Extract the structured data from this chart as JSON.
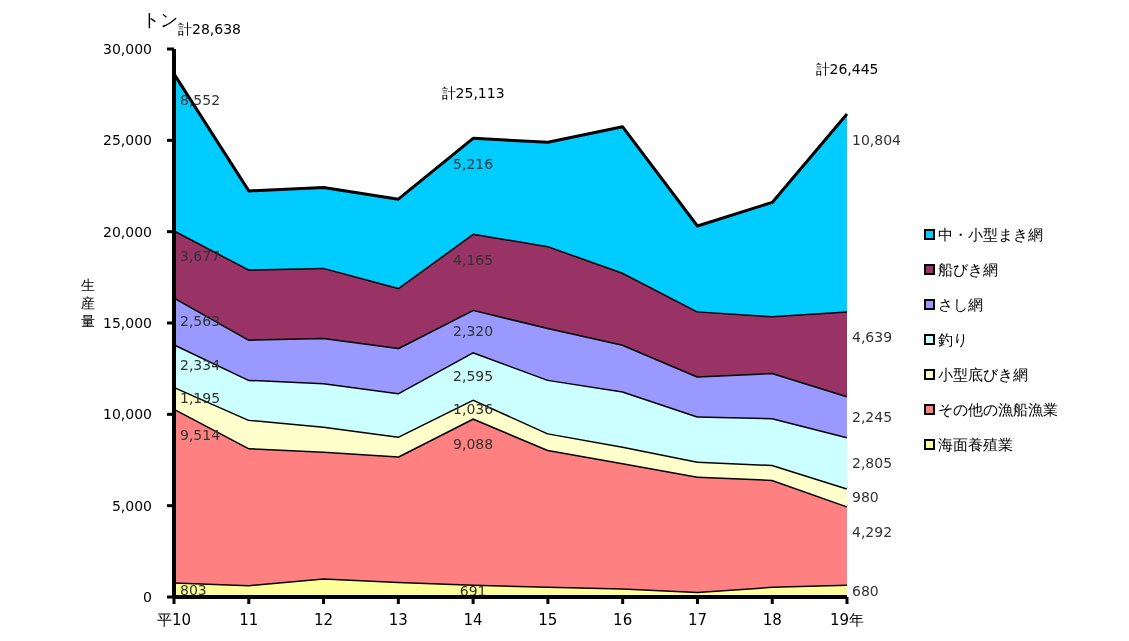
{
  "chart_data": {
    "type": "area",
    "stacked": true,
    "ylabel": "生産量",
    "annotations": [
      "トン"
    ],
    "categories": [
      "平10",
      "11",
      "12",
      "13",
      "14",
      "15",
      "16",
      "17",
      "18",
      "19年"
    ],
    "ylim": [
      0,
      30000
    ],
    "yticks": [
      0,
      {
        "value": 5000,
        "label": "5,000"
      },
      {
        "value": 10000,
        "label": "10,000"
      },
      {
        "value": 15000,
        "label": "15,000"
      },
      {
        "value": 20000,
        "label": "20,000"
      },
      {
        "value": 25000,
        "label": "25,000"
      },
      {
        "value": 30000,
        "label": "30,000"
      }
    ],
    "grid": false,
    "legend": "right",
    "totals": [
      "計28,638",
      null,
      null,
      null,
      "計25,113",
      null,
      null,
      null,
      null,
      "計26,445"
    ],
    "series": [
      {
        "name": "海面養殖業",
        "color": "#ffff99",
        "values": [
          803,
          660,
          1020,
          840,
          691,
          570,
          480,
          290,
          570,
          680
        ],
        "value_labels": [
          "803",
          null,
          null,
          null,
          "691",
          null,
          null,
          null,
          null,
          "680"
        ]
      },
      {
        "name": "その他の漁船漁業",
        "color": "#ff8080",
        "values": [
          9514,
          7500,
          6950,
          6860,
          9088,
          7490,
          6850,
          6310,
          5850,
          4292
        ],
        "value_labels": [
          "9,514",
          null,
          null,
          null,
          "9,088",
          null,
          null,
          null,
          null,
          "4,292"
        ]
      },
      {
        "name": "小型底びき網",
        "color": "#ffffcc",
        "values": [
          1195,
          1550,
          1370,
          1090,
          1036,
          910,
          910,
          820,
          820,
          980
        ],
        "value_labels": [
          "1,195",
          null,
          null,
          null,
          "1,036",
          null,
          null,
          null,
          null,
          "980"
        ]
      },
      {
        "name": "釣り",
        "color": "#ccffff",
        "values": [
          2334,
          2190,
          2380,
          2380,
          2595,
          2930,
          3020,
          2470,
          2560,
          2805
        ],
        "value_labels": [
          "2,334",
          null,
          null,
          null,
          "2,595",
          null,
          null,
          null,
          null,
          "2,805"
        ]
      },
      {
        "name": "さし網",
        "color": "#9999ff",
        "values": [
          2563,
          2200,
          2470,
          2470,
          2320,
          2840,
          2560,
          2190,
          2470,
          2245
        ],
        "value_labels": [
          "2,563",
          null,
          null,
          null,
          "2,320",
          null,
          null,
          null,
          null,
          "2,245"
        ]
      },
      {
        "name": "船びき網",
        "color": "#993366",
        "values": [
          3677,
          3840,
          3840,
          3290,
          4165,
          4480,
          3940,
          3570,
          3110,
          4639
        ],
        "value_labels": [
          "3,677",
          null,
          null,
          null,
          "4,165",
          null,
          null,
          null,
          null,
          "4,639"
        ]
      },
      {
        "name": "中・小型まき網",
        "color": "#00ccff",
        "values": [
          8552,
          4290,
          4390,
          4850,
          5216,
          5670,
          7980,
          4660,
          6220,
          10804
        ],
        "value_labels": [
          "8,552",
          null,
          null,
          null,
          "5,216",
          null,
          null,
          null,
          null,
          "10,804"
        ]
      }
    ]
  }
}
